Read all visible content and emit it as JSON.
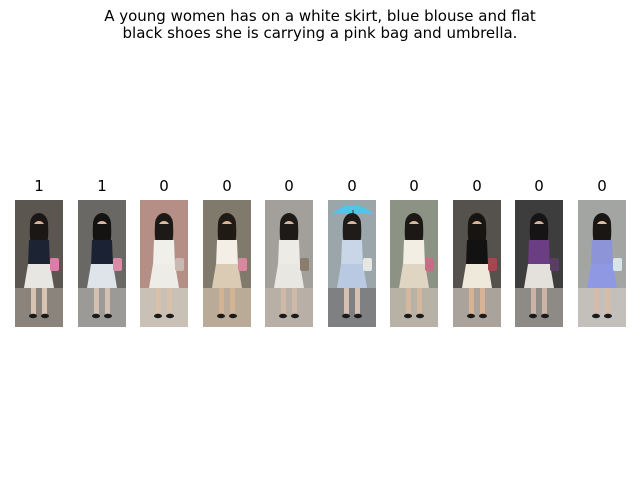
{
  "caption": {
    "line1": "A young women has on a white skirt, blue blouse and flat",
    "line2": "black shoes she is carrying a pink bag and umbrella."
  },
  "gallery": [
    {
      "label": "1",
      "scene": {
        "bg": "#5b5650",
        "ground": "#8a847c",
        "hair": "#1a1715",
        "top": "#1c2333",
        "skirt": "#e8e6e2",
        "skin": "#d9b49a",
        "bag": "#e07aa8",
        "legs": "#d8c2b0"
      }
    },
    {
      "label": "1",
      "scene": {
        "bg": "#6a6864",
        "ground": "#9c9a96",
        "hair": "#151311",
        "top": "#1a2233",
        "skirt": "#dfe3ea",
        "skin": "#d7b7a1",
        "bag": "#d98ba8",
        "legs": "#d3c0b3"
      }
    },
    {
      "label": "0",
      "scene": {
        "bg": "#b58f86",
        "ground": "#c9c1b6",
        "hair": "#1d1916",
        "top": "#f1efe9",
        "skirt": "#eeece6",
        "skin": "#dcbba0",
        "bag": "#c9b9b0",
        "legs": "#d8c0aa"
      }
    },
    {
      "label": "0",
      "scene": {
        "bg": "#7f7a6b",
        "ground": "#b9ab97",
        "hair": "#201a15",
        "top": "#f3efe6",
        "skirt": "#dccbb4",
        "skin": "#dbb396",
        "bag": "#d8879e",
        "legs": "#d2b394"
      }
    },
    {
      "label": "0",
      "scene": {
        "bg": "#a39f9a",
        "ground": "#b8afa6",
        "hair": "#1e1a17",
        "top": "#ecebe6",
        "skirt": "#e9e7e2",
        "skin": "#d8b79f",
        "bag": "#8b7d6e",
        "legs": "#cfb8a5"
      }
    },
    {
      "label": "0",
      "scene": {
        "bg": "#9aa6a9",
        "ground": "#7e8081",
        "hair": "#1e1b18",
        "top": "#c9d6e8",
        "skirt": "#b9c9e2",
        "skin": "#d7b8a2",
        "bag": "#e6e6e3",
        "legs": "#d4bfb0",
        "umbrella": "#4fc6e6"
      }
    },
    {
      "label": "0",
      "scene": {
        "bg": "#8c9384",
        "ground": "#b7b1a6",
        "hair": "#1b1815",
        "top": "#f2eee4",
        "skirt": "#e0d4c2",
        "skin": "#dbb89c",
        "bag": "#c96d87",
        "legs": "#d3b79e"
      }
    },
    {
      "label": "0",
      "scene": {
        "bg": "#55514d",
        "ground": "#a9a39c",
        "hair": "#171412",
        "top": "#121212",
        "skirt": "#efe9dc",
        "skin": "#dbb495",
        "bag": "#a6474f",
        "legs": "#d7b295"
      }
    },
    {
      "label": "0",
      "scene": {
        "bg": "#3e3d3e",
        "ground": "#8e8a86",
        "hair": "#171416",
        "top": "#6b3d82",
        "skirt": "#e4e1dc",
        "skin": "#d6b39f",
        "bag": "#5a3d63",
        "legs": "#cdb3a6"
      }
    },
    {
      "label": "0",
      "scene": {
        "bg": "#a3a5a3",
        "ground": "#c3c0bb",
        "hair": "#1a1613",
        "top": "#8d94d8",
        "skirt": "#8f99e3",
        "skin": "#e0bea7",
        "bag": "#d7e5ea",
        "legs": "#d6bba8"
      }
    }
  ]
}
